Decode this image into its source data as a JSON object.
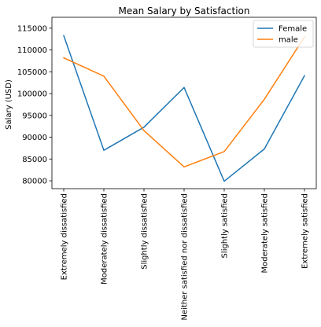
{
  "chart_data": {
    "type": "line",
    "title": "Mean Salary by Satisfaction",
    "xlabel": "",
    "ylabel": "Salary (USD)",
    "categories": [
      "Extremely dissatisfied",
      "Moderately dissatisfied",
      "Slightly dissatisfied",
      "Neither satisfied nor dissatisfied",
      "Slightly satisfied",
      "Moderately satisfied",
      "Extremely satisfied"
    ],
    "series": [
      {
        "name": "Female",
        "color": "#1f77b4",
        "values": [
          113300,
          87000,
          92300,
          101400,
          79900,
          87300,
          104100
        ]
      },
      {
        "name": "male",
        "color": "#ff7f0e",
        "values": [
          108200,
          104000,
          91500,
          83200,
          86700,
          98700,
          113000
        ]
      }
    ],
    "ylim": [
      78200,
      117500
    ],
    "yticks": [
      80000,
      85000,
      90000,
      95000,
      100000,
      105000,
      110000,
      115000
    ],
    "ytick_labels": [
      "80000",
      "85000",
      "90000",
      "95000",
      "100000",
      "105000",
      "110000",
      "115000"
    ],
    "grid": false,
    "legend_position": "top-right"
  }
}
